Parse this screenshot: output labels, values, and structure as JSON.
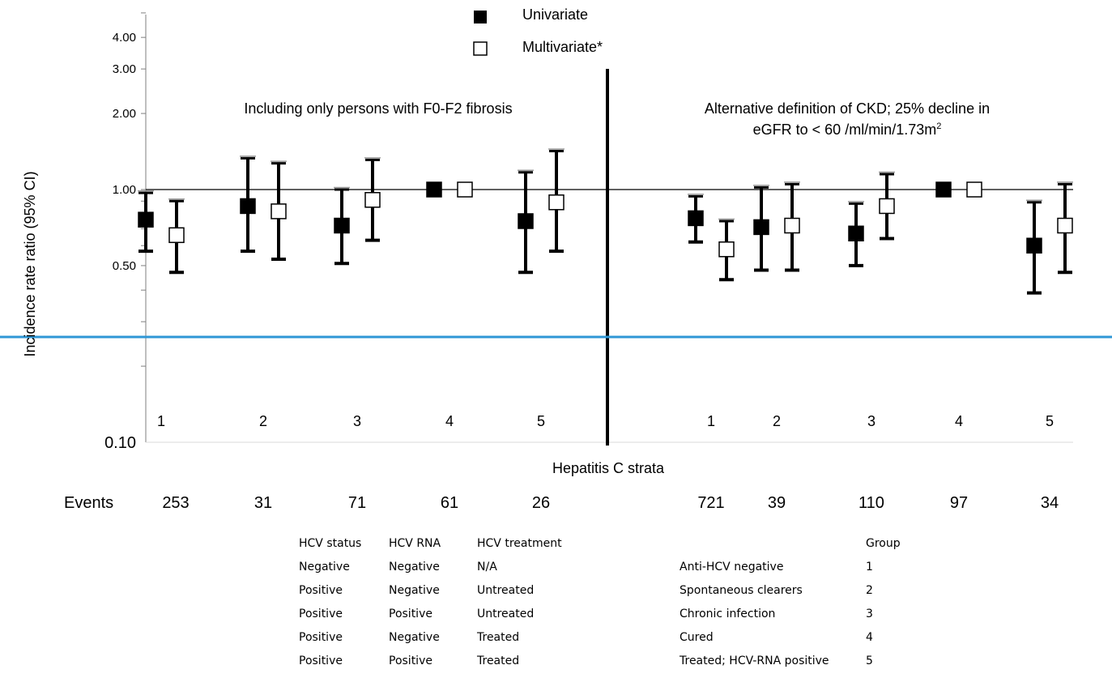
{
  "chart_data": {
    "type": "scatter",
    "subtype": "error-bar",
    "yscale": "log",
    "ylim": [
      0.1,
      5.0
    ],
    "ylabel": "Incidence rate ratio (95% CI)",
    "xlabel": "Hepatitis C strata",
    "ytick_labels": [
      "4.00",
      "3.00",
      "2.00",
      "1.00",
      "0.50",
      "0.10"
    ],
    "ytick_values": [
      4,
      3,
      2,
      1,
      0.5,
      0.1
    ],
    "reference_line": 1.0,
    "legend": {
      "position": "top-center",
      "entries": [
        "Univariate",
        "Multivariate*"
      ]
    },
    "panels": [
      {
        "title": "Including only persons with F0-F2 fibrosis",
        "categories": [
          "1",
          "2",
          "3",
          "4",
          "5"
        ],
        "events": [
          "253",
          "31",
          "71",
          "61",
          "26"
        ],
        "series": [
          {
            "name": "Univariate",
            "marker": "filled-square",
            "values": [
              0.76,
              0.86,
              0.72,
              1.0,
              0.75
            ],
            "lower": [
              0.57,
              0.57,
              0.51,
              1.0,
              0.47
            ],
            "upper": [
              0.97,
              1.33,
              1.0,
              1.0,
              1.17
            ]
          },
          {
            "name": "Multivariate*",
            "marker": "open-square",
            "values": [
              0.66,
              0.82,
              0.91,
              1.0,
              0.89
            ],
            "lower": [
              0.47,
              0.53,
              0.63,
              1.0,
              0.57
            ],
            "upper": [
              0.9,
              1.27,
              1.31,
              1.0,
              1.42
            ]
          }
        ]
      },
      {
        "title": "Alternative definition of CKD; 25% decline in eGFR to < 60 /ml/min/1.73m²",
        "categories": [
          "1",
          "2",
          "3",
          "4",
          "5"
        ],
        "events": [
          "721",
          "39",
          "110",
          "97",
          "34"
        ],
        "series": [
          {
            "name": "Univariate",
            "marker": "filled-square",
            "values": [
              0.77,
              0.71,
              0.67,
              1.0,
              0.6
            ],
            "lower": [
              0.62,
              0.48,
              0.5,
              1.0,
              0.39
            ],
            "upper": [
              0.94,
              1.02,
              0.88,
              1.0,
              0.89
            ]
          },
          {
            "name": "Multivariate*",
            "marker": "open-square",
            "values": [
              0.58,
              0.72,
              0.86,
              1.0,
              0.72
            ],
            "lower": [
              0.44,
              0.48,
              0.64,
              1.0,
              0.47
            ],
            "upper": [
              0.75,
              1.05,
              1.15,
              1.0,
              1.05
            ]
          }
        ]
      }
    ]
  },
  "labels": {
    "events_label": "Events",
    "panel_left_title": "Including only persons with F0-F2 fibrosis",
    "panel_right_title_line1": "Alternative definition of CKD; 25% decline in",
    "panel_right_title_line2": "eGFR to < 60 /ml/min/1.73m",
    "panel_right_title_sup": "2"
  },
  "key_table": {
    "headers": [
      "HCV status",
      "HCV RNA",
      "HCV treatment",
      "",
      "Group"
    ],
    "rows": [
      [
        "Negative",
        "Negative",
        "N/A",
        "Anti-HCV negative",
        "1"
      ],
      [
        "Positive",
        "Negative",
        "Untreated",
        "Spontaneous clearers",
        "2"
      ],
      [
        "Positive",
        "Positive",
        "Untreated",
        "Chronic infection",
        "3"
      ],
      [
        "Positive",
        "Negative",
        "Treated",
        "Cured",
        "4"
      ],
      [
        "Positive",
        "Positive",
        "Treated",
        "Treated; HCV-RNA positive",
        "5"
      ]
    ]
  },
  "colors": {
    "highlight_line": "#2f97d6",
    "ink": "#000000",
    "axis": "#7f7f7f"
  }
}
